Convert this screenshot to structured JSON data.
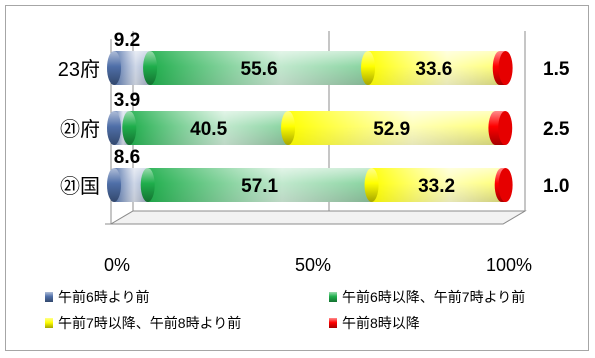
{
  "chart_data": {
    "type": "bar",
    "orientation": "horizontal",
    "stacked": "percent",
    "categories": [
      "23府",
      "㉑府",
      "㉑国"
    ],
    "series": [
      {
        "name": "午前6時より前",
        "values": [
          9.2,
          3.9,
          8.6
        ],
        "color": "#4f6fa8"
      },
      {
        "name": "午前6時以降、午前7時より前",
        "values": [
          55.6,
          40.5,
          57.1
        ],
        "color": "#1fae4c"
      },
      {
        "name": "午前7時以降、午前8時より前",
        "values": [
          33.6,
          52.9,
          33.2
        ],
        "color": "#ffff00"
      },
      {
        "name": "午前8時以降",
        "values": [
          1.5,
          2.5,
          1.0
        ],
        "color": "#ff0000"
      }
    ],
    "xticks": [
      "0%",
      "50%",
      "100%"
    ],
    "xlim": [
      0,
      100
    ],
    "grid": true,
    "legend_position": "bottom"
  }
}
